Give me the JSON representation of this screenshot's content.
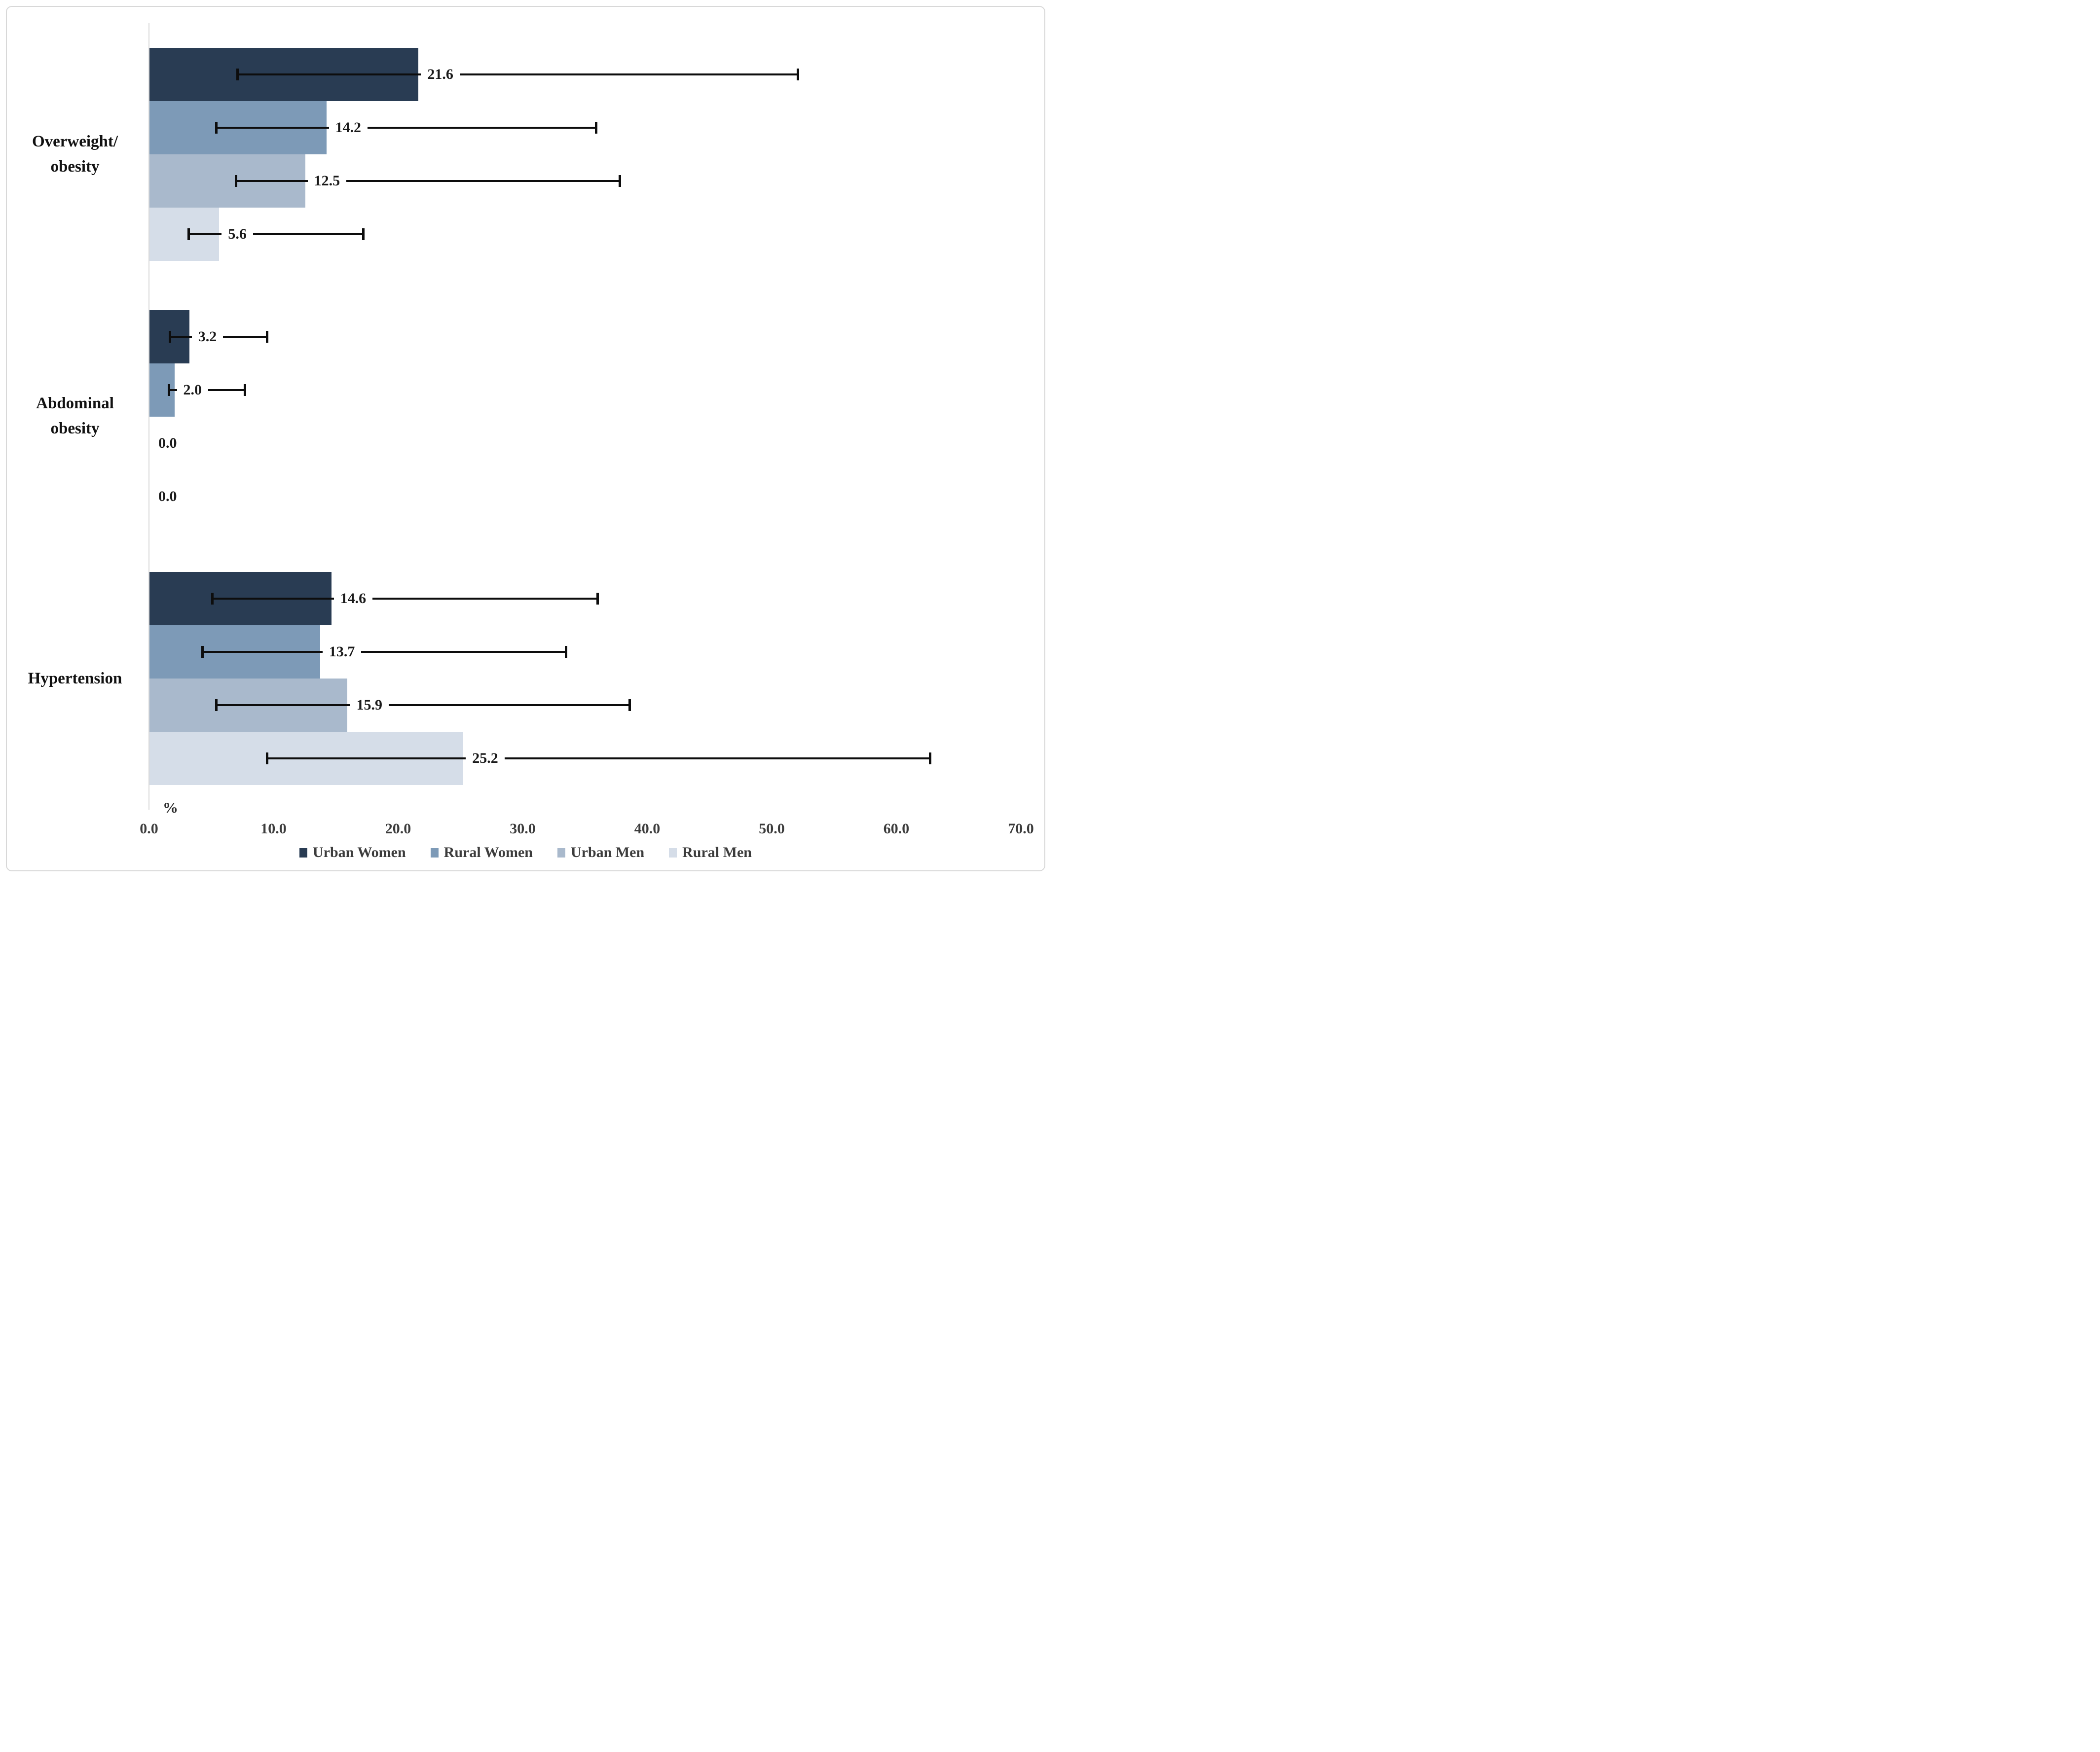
{
  "chart_data": {
    "type": "bar",
    "orientation": "horizontal",
    "title": "",
    "xlabel": "%",
    "ylabel": "",
    "xlim": [
      0,
      70
    ],
    "xticks": [
      "0.0",
      "10.0",
      "20.0",
      "30.0",
      "40.0",
      "50.0",
      "60.0",
      "70.0"
    ],
    "grid": false,
    "legend_position": "bottom-center",
    "categories": [
      "Overweight/obesity",
      "Abdominal obesity",
      "Hypertension"
    ],
    "category_label_lines": [
      [
        "Overweight/",
        "obesity"
      ],
      [
        "Abdominal",
        "obesity"
      ],
      [
        "Hypertension"
      ]
    ],
    "series": [
      {
        "name": "Urban Women",
        "color": "#293C53",
        "values": [
          21.6,
          3.2,
          14.6
        ],
        "ci_low": [
          7.0,
          1.6,
          5.0
        ],
        "ci_high": [
          52.2,
          9.6,
          36.1
        ]
      },
      {
        "name": "Rural Women",
        "color": "#7D9AB7",
        "values": [
          14.2,
          2.0,
          13.7
        ],
        "ci_low": [
          5.3,
          1.5,
          4.2
        ],
        "ci_high": [
          36.0,
          7.8,
          33.6
        ]
      },
      {
        "name": "Urban Men",
        "color": "#A9B9CC",
        "values": [
          12.5,
          0.0,
          15.9
        ],
        "ci_low": [
          6.9,
          null,
          5.3
        ],
        "ci_high": [
          37.9,
          null,
          38.7
        ]
      },
      {
        "name": "Rural Men",
        "color": "#D5DDE8",
        "values": [
          5.6,
          0.0,
          25.2
        ],
        "ci_low": [
          3.1,
          null,
          9.4
        ],
        "ci_high": [
          17.3,
          null,
          62.8
        ]
      }
    ],
    "error_bar_color": "#0d0d0d",
    "axis_line_color": "#d9d9d9"
  }
}
